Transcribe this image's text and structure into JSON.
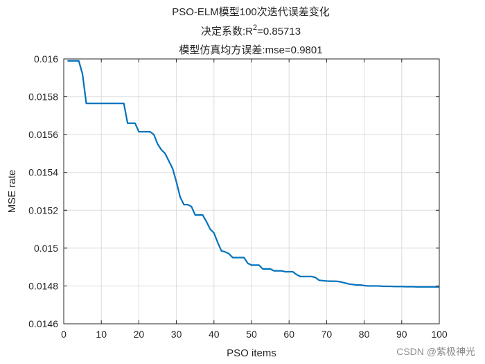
{
  "chart_data": {
    "type": "line",
    "title": [
      "PSO-ELM模型100次迭代误差变化",
      "决定系数:R²=0.85713",
      "模型仿真均方误差:mse=0.9801"
    ],
    "title_r2_prefix": "决定系数:R",
    "title_r2_sup": "2",
    "title_r2_suffix": "=0.85713",
    "xlabel": "PSO items",
    "ylabel": "MSE rate",
    "xlim": [
      0,
      100
    ],
    "ylim": [
      0.0146,
      0.016
    ],
    "xticks": [
      0,
      10,
      20,
      30,
      40,
      50,
      60,
      70,
      80,
      90,
      100
    ],
    "yticks": [
      0.0146,
      0.0148,
      0.015,
      0.0152,
      0.0154,
      0.0156,
      0.0158,
      0.016
    ],
    "ytick_labels": [
      "0.0146",
      "0.0148",
      "0.015",
      "0.0152",
      "0.0154",
      "0.0156",
      "0.0158",
      "0.016"
    ],
    "grid": true,
    "line_color": "#0072bd",
    "series": [
      {
        "name": "MSE",
        "x": [
          1,
          2,
          3,
          4,
          5,
          6,
          7,
          8,
          9,
          10,
          11,
          12,
          13,
          14,
          15,
          16,
          17,
          18,
          19,
          20,
          21,
          22,
          23,
          24,
          25,
          26,
          27,
          28,
          29,
          30,
          31,
          32,
          33,
          34,
          35,
          36,
          37,
          38,
          39,
          40,
          41,
          42,
          43,
          44,
          45,
          46,
          47,
          48,
          49,
          50,
          51,
          52,
          53,
          54,
          55,
          56,
          57,
          58,
          59,
          60,
          61,
          62,
          63,
          64,
          65,
          66,
          67,
          68,
          69,
          70,
          71,
          72,
          73,
          74,
          75,
          76,
          77,
          78,
          79,
          80,
          81,
          82,
          83,
          84,
          85,
          86,
          87,
          88,
          89,
          90,
          91,
          92,
          93,
          94,
          95,
          96,
          97,
          98,
          99,
          100
        ],
        "values": [
          0.01599,
          0.01599,
          0.01599,
          0.01599,
          0.01592,
          0.015765,
          0.015765,
          0.015765,
          0.015765,
          0.015765,
          0.015765,
          0.015765,
          0.015765,
          0.015765,
          0.015765,
          0.015765,
          0.01566,
          0.01566,
          0.01566,
          0.015615,
          0.015615,
          0.015615,
          0.015615,
          0.0156,
          0.01555,
          0.01552,
          0.0155,
          0.01546,
          0.01542,
          0.01535,
          0.01527,
          0.01523,
          0.01523,
          0.01522,
          0.015175,
          0.015175,
          0.015175,
          0.01514,
          0.0151,
          0.01508,
          0.01503,
          0.014985,
          0.01498,
          0.01497,
          0.01495,
          0.01495,
          0.01495,
          0.01495,
          0.01492,
          0.01491,
          0.01491,
          0.01491,
          0.01489,
          0.01489,
          0.01489,
          0.01488,
          0.01488,
          0.01488,
          0.014875,
          0.014875,
          0.014875,
          0.01486,
          0.01485,
          0.01485,
          0.01485,
          0.01485,
          0.014845,
          0.01483,
          0.014828,
          0.014826,
          0.014825,
          0.014825,
          0.014824,
          0.01482,
          0.014815,
          0.01481,
          0.014808,
          0.014805,
          0.014805,
          0.014802,
          0.0148,
          0.0148,
          0.0148,
          0.0148,
          0.014798,
          0.014798,
          0.014798,
          0.014797,
          0.014797,
          0.014797,
          0.014796,
          0.014796,
          0.014796,
          0.014795,
          0.014795,
          0.014795,
          0.014795,
          0.014795,
          0.014795,
          0.014795
        ]
      }
    ]
  },
  "watermark": "CSDN @紫极神光"
}
